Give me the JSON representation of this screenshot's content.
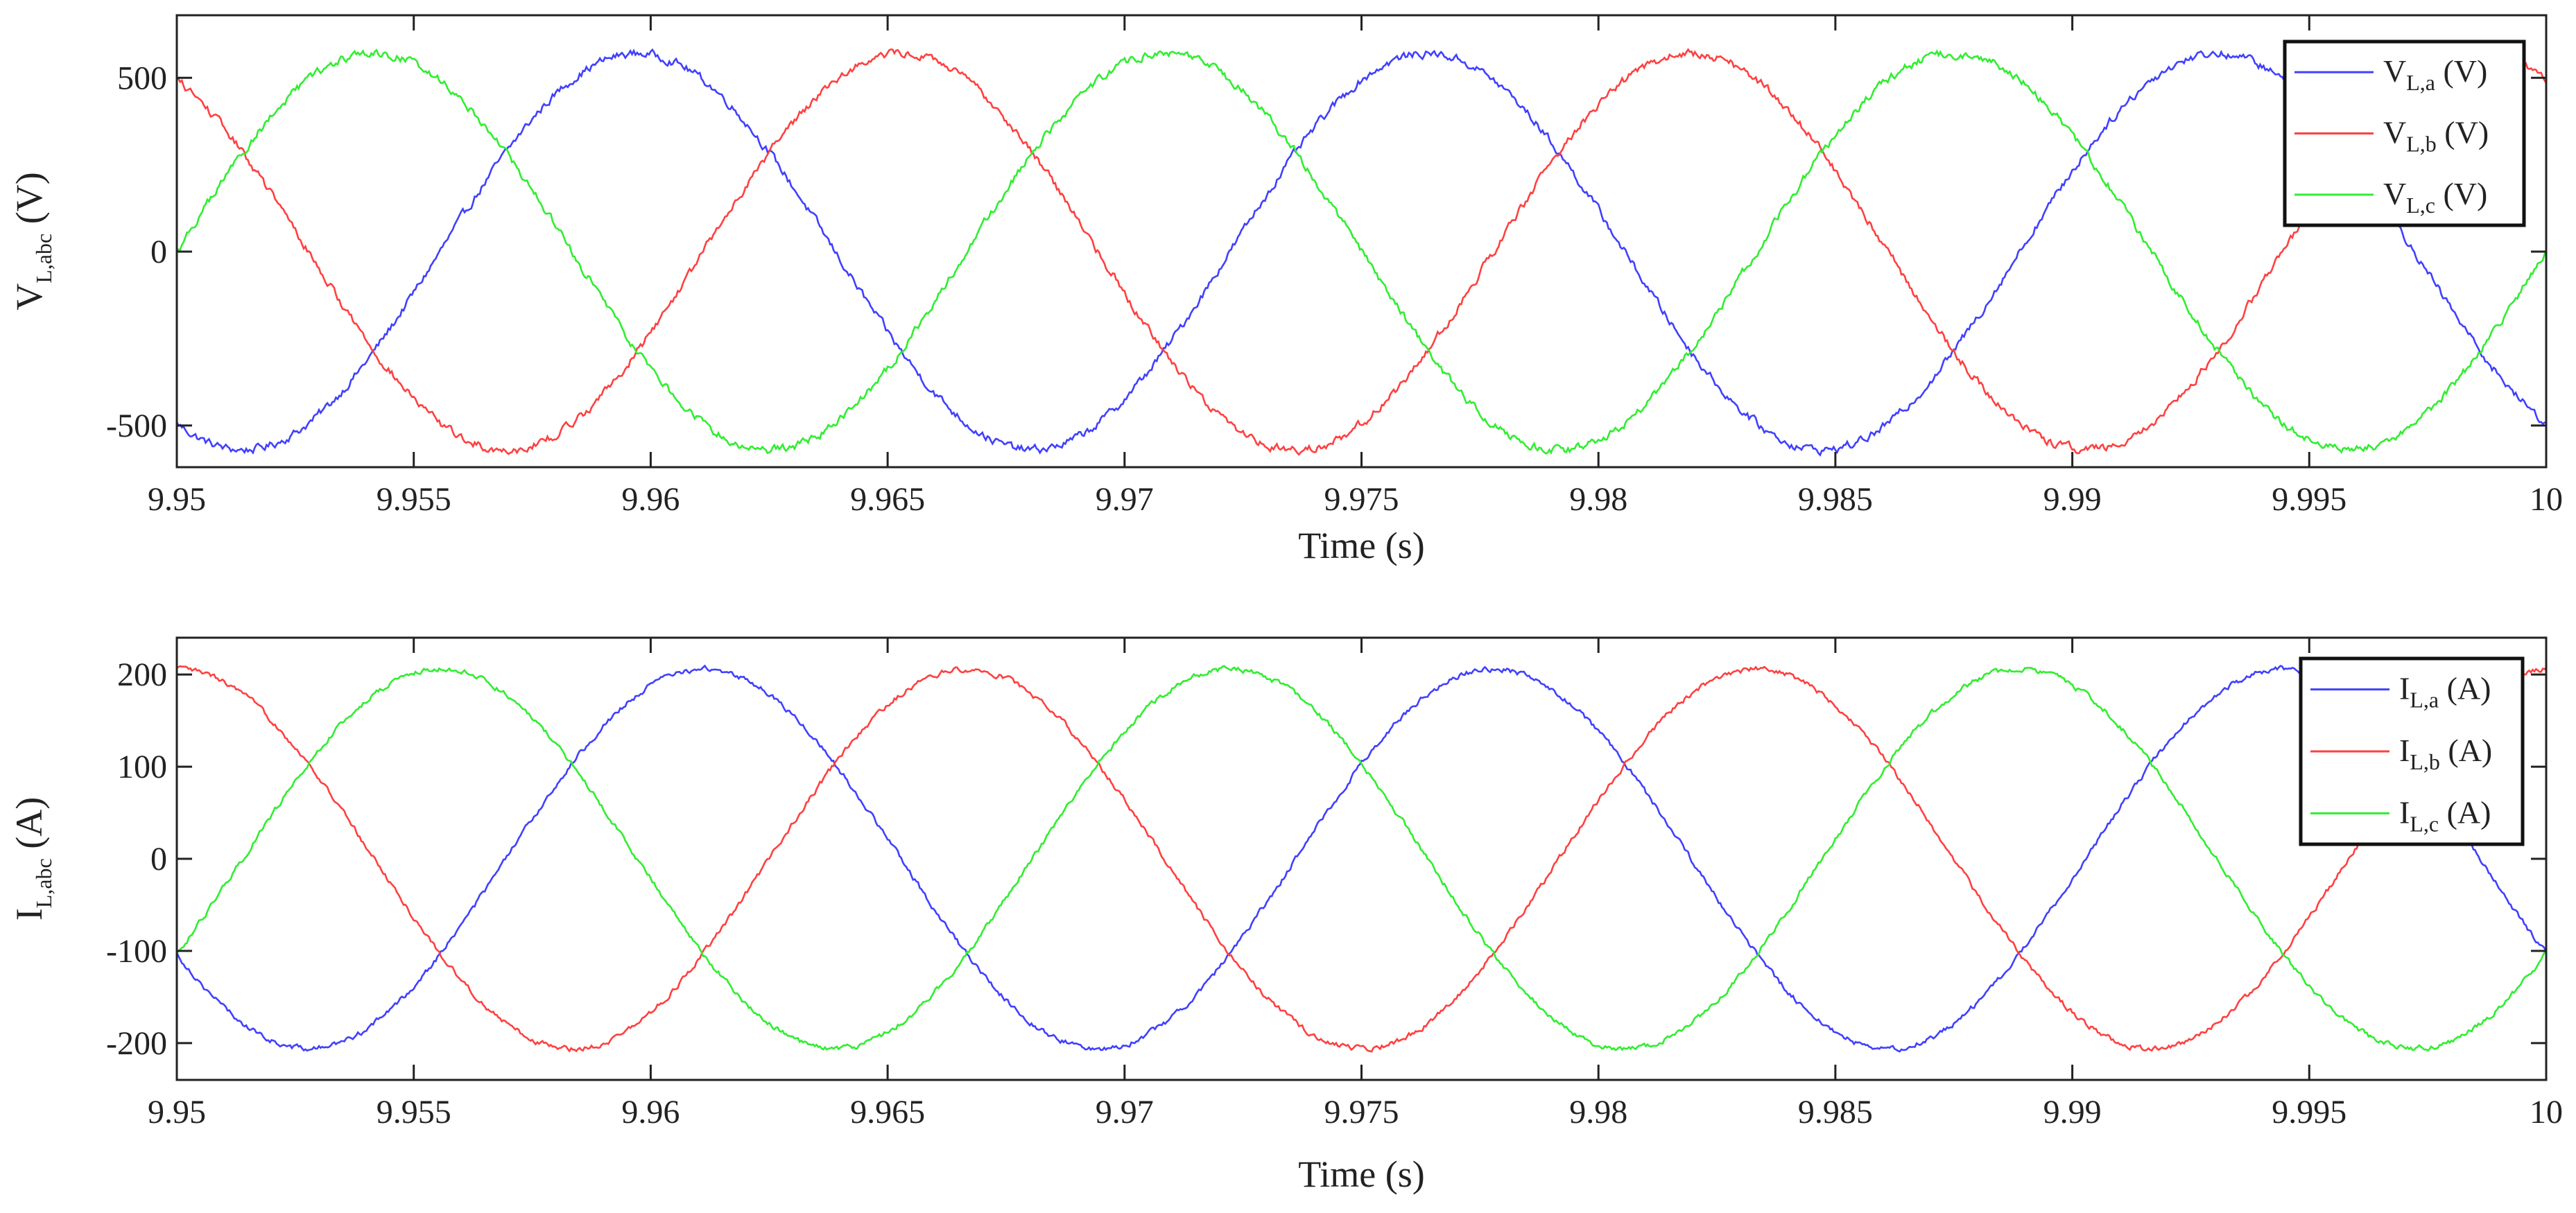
{
  "chart_data": [
    {
      "type": "line",
      "xlabel": "Time (s)",
      "ylabel_main": "V",
      "ylabel_sub": "L,abc",
      "ylabel_unit": " (V)",
      "xlim": [
        9.95,
        10
      ],
      "ylim": [
        -620,
        680
      ],
      "xticks": [
        9.95,
        9.955,
        9.96,
        9.965,
        9.97,
        9.975,
        9.98,
        9.985,
        9.99,
        9.995,
        10
      ],
      "xtick_labels": [
        "9.95",
        "9.955",
        "9.96",
        "9.965",
        "9.97",
        "9.975",
        "9.98",
        "9.985",
        "9.99",
        "9.995",
        "10"
      ],
      "yticks": [
        -500,
        0,
        500
      ],
      "ytick_labels": [
        "-500",
        "0",
        "500"
      ],
      "legend_position": "top-right",
      "series": [
        {
          "name_main": "V",
          "name_sub": "L,a",
          "name_unit": " (V)",
          "color": "#4040ff",
          "amplitude": 570,
          "frequency_hz": 60,
          "phase_deg": -120,
          "ripple": 12
        },
        {
          "name_main": "V",
          "name_sub": "L,b",
          "name_unit": " (V)",
          "color": "#ff4040",
          "amplitude": 570,
          "frequency_hz": 60,
          "phase_deg": 120,
          "ripple": 12
        },
        {
          "name_main": "V",
          "name_sub": "L,c",
          "name_unit": " (V)",
          "color": "#30ee30",
          "amplitude": 570,
          "frequency_hz": 60,
          "phase_deg": 0,
          "ripple": 12
        }
      ]
    },
    {
      "type": "line",
      "xlabel": "Time (s)",
      "ylabel_main": "I",
      "ylabel_sub": "L,abc",
      "ylabel_unit": " (A)",
      "xlim": [
        9.95,
        10
      ],
      "ylim": [
        -240,
        240
      ],
      "xticks": [
        9.95,
        9.955,
        9.96,
        9.965,
        9.97,
        9.975,
        9.98,
        9.985,
        9.99,
        9.995,
        10
      ],
      "xtick_labels": [
        "9.95",
        "9.955",
        "9.96",
        "9.965",
        "9.97",
        "9.975",
        "9.98",
        "9.985",
        "9.99",
        "9.995",
        "10"
      ],
      "yticks": [
        -200,
        -100,
        0,
        100,
        200
      ],
      "ytick_labels": [
        "-200",
        "-100",
        "0",
        "100",
        "200"
      ],
      "legend_position": "top-right",
      "series": [
        {
          "name_main": "I",
          "name_sub": "L,a",
          "name_unit": " (A)",
          "color": "#4040ff",
          "amplitude": 206,
          "frequency_hz": 60,
          "phase_deg": -150,
          "ripple": 3
        },
        {
          "name_main": "I",
          "name_sub": "L,b",
          "name_unit": " (A)",
          "color": "#ff4040",
          "amplitude": 206,
          "frequency_hz": 60,
          "phase_deg": 90,
          "ripple": 3
        },
        {
          "name_main": "I",
          "name_sub": "L,c",
          "name_unit": " (A)",
          "color": "#30ee30",
          "amplitude": 206,
          "frequency_hz": 60,
          "phase_deg": -30,
          "ripple": 3
        }
      ]
    }
  ]
}
